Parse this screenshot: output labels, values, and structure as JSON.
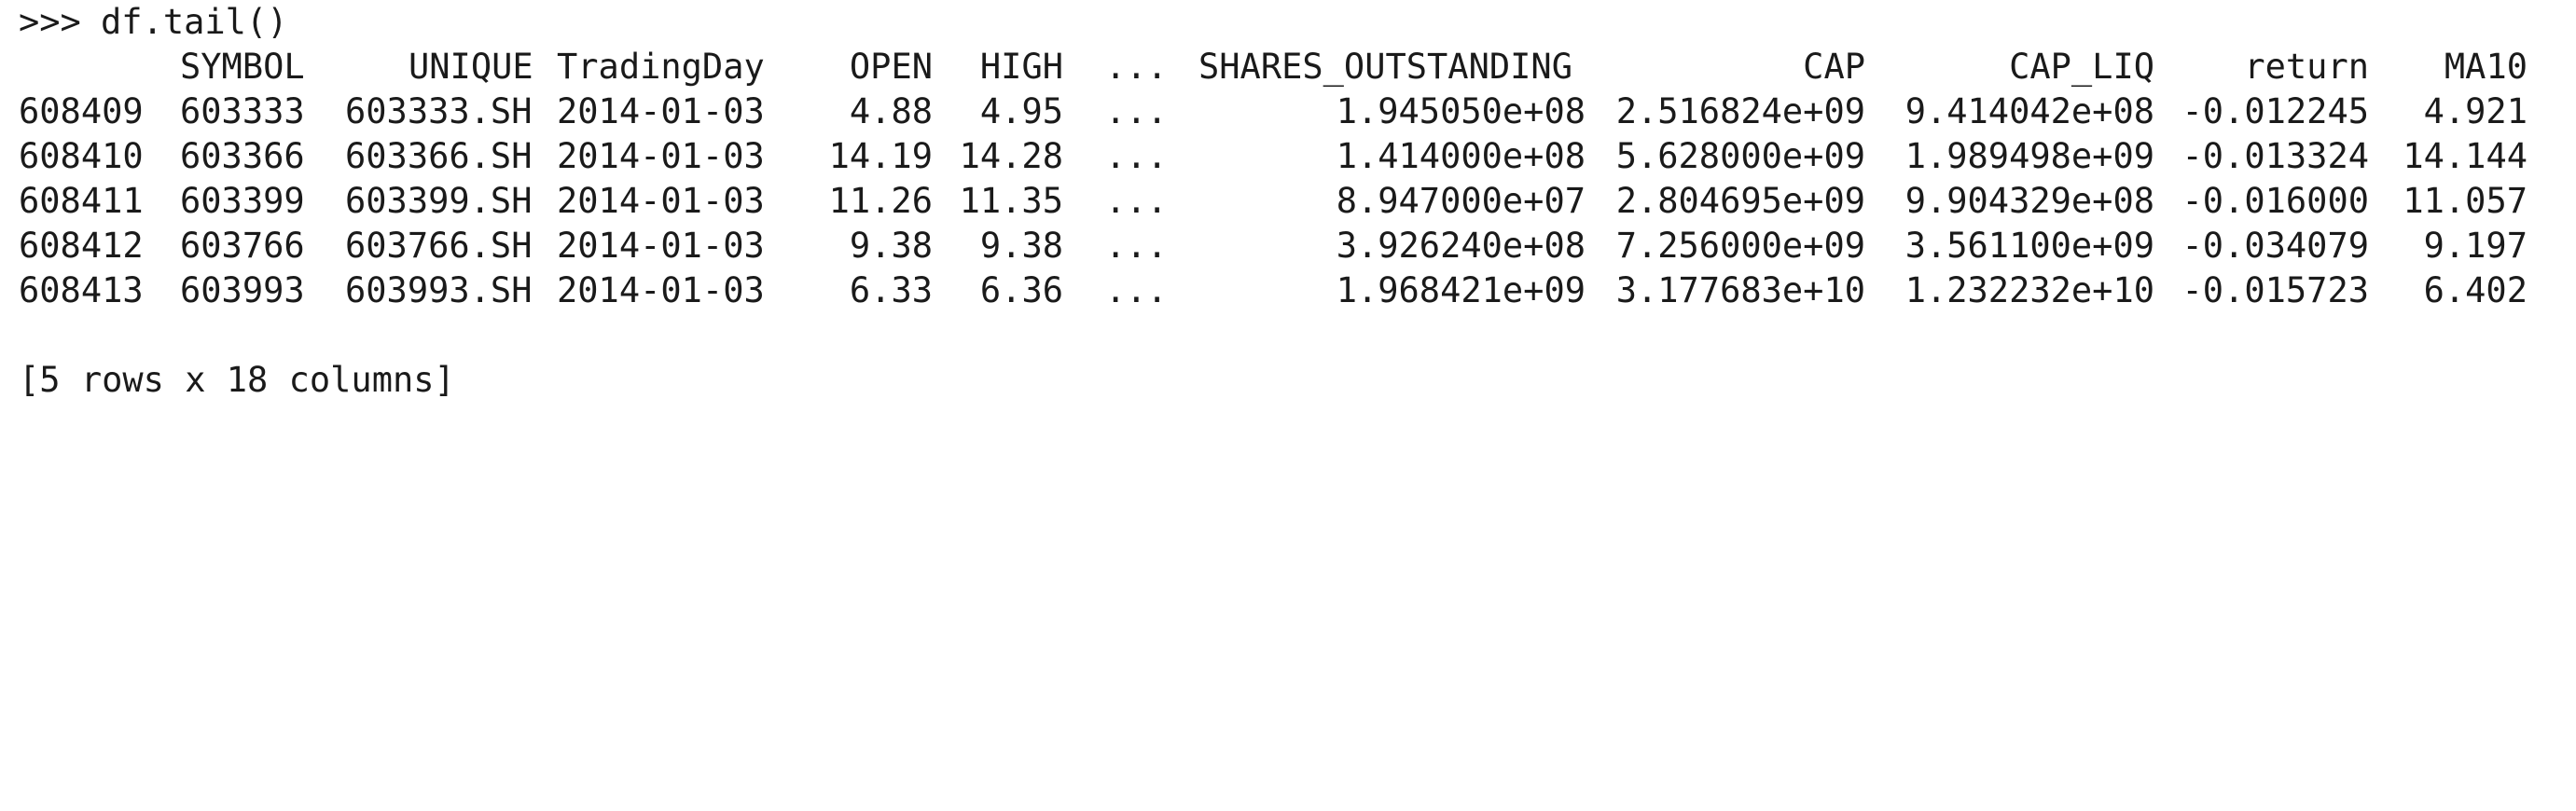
{
  "console": {
    "prompt": ">>>",
    "command": "df.tail()",
    "columns": [
      "SYMBOL",
      "UNIQUE",
      "TradingDay",
      "OPEN",
      "HIGH",
      "...",
      "SHARES_OUTSTANDING",
      "CAP",
      "CAP_LIQ",
      "return",
      "MA10"
    ],
    "rows": [
      {
        "index": "608409",
        "cells": [
          "603333",
          "603333.SH",
          "2014-01-03",
          "4.88",
          "4.95",
          "...",
          "1.945050e+08",
          "2.516824e+09",
          "9.414042e+08",
          "-0.012245",
          "4.921"
        ]
      },
      {
        "index": "608410",
        "cells": [
          "603366",
          "603366.SH",
          "2014-01-03",
          "14.19",
          "14.28",
          "...",
          "1.414000e+08",
          "5.628000e+09",
          "1.989498e+09",
          "-0.013324",
          "14.144"
        ]
      },
      {
        "index": "608411",
        "cells": [
          "603399",
          "603399.SH",
          "2014-01-03",
          "11.26",
          "11.35",
          "...",
          "8.947000e+07",
          "2.804695e+09",
          "9.904329e+08",
          "-0.016000",
          "11.057"
        ]
      },
      {
        "index": "608412",
        "cells": [
          "603766",
          "603766.SH",
          "2014-01-03",
          "9.38",
          "9.38",
          "...",
          "3.926240e+08",
          "7.256000e+09",
          "3.561100e+09",
          "-0.034079",
          "9.197"
        ]
      },
      {
        "index": "608413",
        "cells": [
          "603993",
          "603993.SH",
          "2014-01-03",
          "6.33",
          "6.36",
          "...",
          "1.968421e+09",
          "3.177683e+10",
          "1.232232e+10",
          "-0.015723",
          "6.402"
        ]
      }
    ],
    "summary": "[5 rows x 18 columns]"
  }
}
